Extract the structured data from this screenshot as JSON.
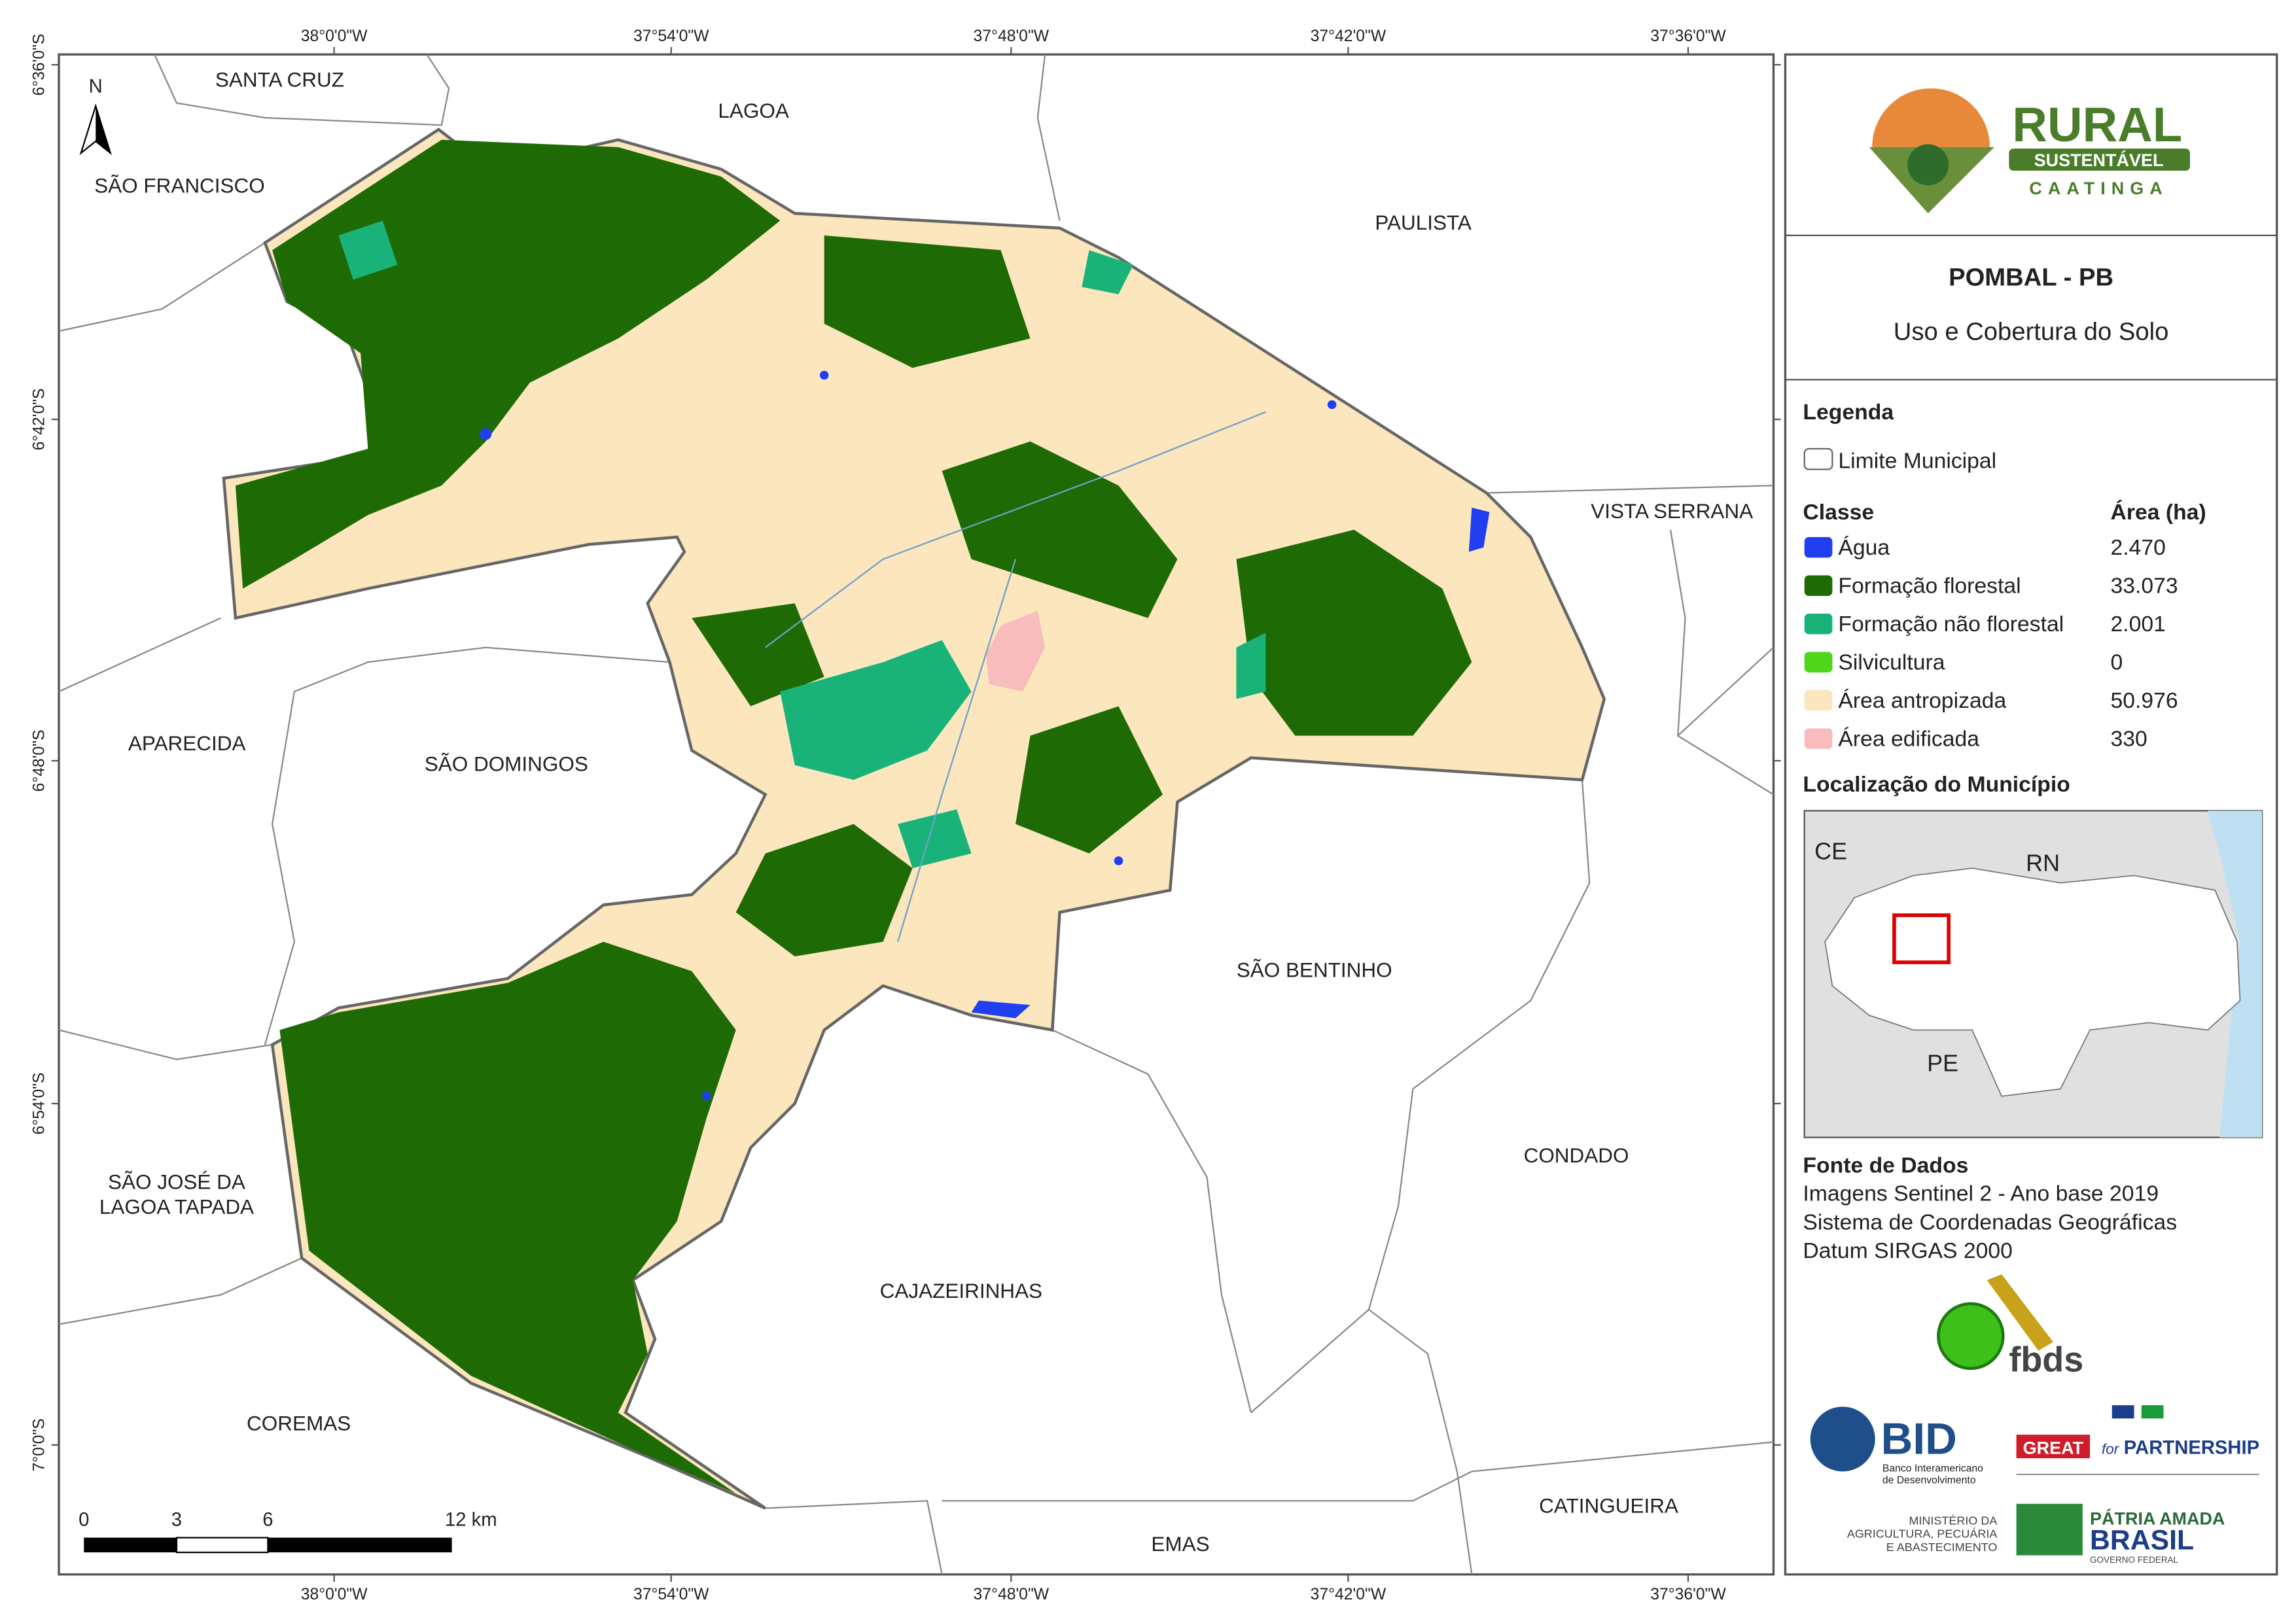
{
  "map": {
    "lon_ticks": [
      "38°0'0\"W",
      "37°54'0\"W",
      "37°48'0\"W",
      "37°42'0\"W",
      "37°36'0\"W"
    ],
    "lat_ticks": [
      "6°36'0\"S",
      "6°42'0\"S",
      "6°48'0\"S",
      "6°54'0\"S",
      "7°0'0\"S"
    ],
    "north": "N",
    "places": [
      [
        "SANTA CRUZ"
      ],
      [
        "LAGOA"
      ],
      [
        "SÃO FRANCISCO"
      ],
      [
        "PAULISTA"
      ],
      [
        "VISTA SERRANA"
      ],
      [
        "APARECIDA"
      ],
      [
        "SÃO DOMINGOS"
      ],
      [
        "SÃO BENTINHO"
      ],
      [
        "CONDADO"
      ],
      [
        "SÃO JOSÉ DA",
        "LAGOA TAPADA"
      ],
      [
        "CAJAZEIRINHAS"
      ],
      [
        "COREMAS"
      ],
      [
        "CATINGUEIRA"
      ],
      [
        "EMAS"
      ]
    ],
    "scale": [
      "0",
      "3",
      "6",
      "12 km"
    ]
  },
  "panel": {
    "logo": {
      "title": "RURAL",
      "band": "SUSTENTÁVEL",
      "sub": "CAATINGA"
    },
    "heading": "POMBAL - PB",
    "subtitle": "Uso e Cobertura do Solo",
    "legend_title": "Legenda",
    "boundary": "Limite Municipal",
    "class_header": "Classe",
    "area_header": "Área (ha)",
    "classes": [
      {
        "name": "Água",
        "color": "#1f3ff0",
        "area": "2.470"
      },
      {
        "name": "Formação florestal",
        "color": "#1e6b05",
        "area": "33.073"
      },
      {
        "name": "Formação não florestal",
        "color": "#19b37a",
        "area": "2.001"
      },
      {
        "name": "Silvicultura",
        "color": "#4fd61a",
        "area": "0"
      },
      {
        "name": "Área antropizada",
        "color": "#fbe6bd",
        "area": "50.976"
      },
      {
        "name": "Área edificada",
        "color": "#f9bcbc",
        "area": "330"
      }
    ],
    "location_title": "Localização do Município",
    "inset_labels": [
      "CE",
      "RN",
      "PE"
    ],
    "sources_title": "Fonte de Dados",
    "sources": [
      "Imagens Sentinel 2 - Ano base 2019",
      "Sistema de Coordenadas Geográficas",
      "Datum SIRGAS 2000"
    ],
    "fbds": "fbds",
    "bid": "BID",
    "bid_name": [
      "Banco Interamericano",
      "de Desenvolvimento"
    ],
    "great": [
      "GREAT",
      "for",
      "PARTNERSHIP"
    ],
    "ministry": [
      "MINISTÉRIO DA",
      "AGRICULTURA, PECUÁRIA",
      "E ABASTECIMENTO"
    ],
    "brasil": [
      "PÁTRIA AMADA",
      "BRASIL",
      "GOVERNO FEDERAL"
    ]
  }
}
